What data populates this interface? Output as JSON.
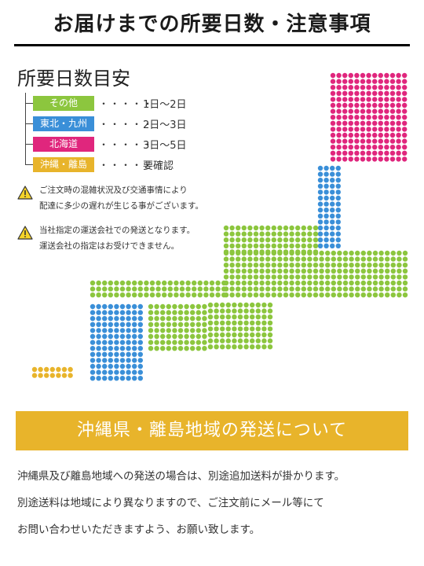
{
  "title": "お届けまでの所要日数・注意事項",
  "heading": "所要日数目安",
  "legend": [
    {
      "region": "その他",
      "dots": "・・・・・",
      "days": "1日～2日",
      "color": "#8cc63e"
    },
    {
      "region": "東北・九州",
      "dots": "・・・・・",
      "days": "2日～3日",
      "color": "#3a8fd8"
    },
    {
      "region": "北海道",
      "dots": "・・・・・",
      "days": "3日～5日",
      "color": "#e0267d"
    },
    {
      "region": "沖縄・離島",
      "dots": "・・・・・",
      "days": "要確認",
      "color": "#e8b42b"
    }
  ],
  "notices": [
    {
      "icon": "warning-icon",
      "lines": [
        "ご注文時の混雑状況及び交通事情により",
        "配達に多少の遅れが生じる事がございます。"
      ]
    },
    {
      "icon": "warning-icon",
      "lines": [
        "当社指定の運送会社での発送となります。",
        "運送会社の指定はお受けできません。"
      ]
    }
  ],
  "map_colors": {
    "hokkaido": "#e0267d",
    "tohoku": "#3a8fd8",
    "kyushu": "#3a8fd8",
    "other": "#8cc63e",
    "okinawa": "#e8b42b"
  },
  "banner": "沖縄県・離島地域の発送について",
  "body_lines": [
    "沖縄県及び離島地域への発送の場合は、別途追加送料が掛かります。",
    "別途送料は地域により異なりますので、ご注文前にメール等にて",
    "お問い合わせいただきますよう、お願い致します。"
  ]
}
